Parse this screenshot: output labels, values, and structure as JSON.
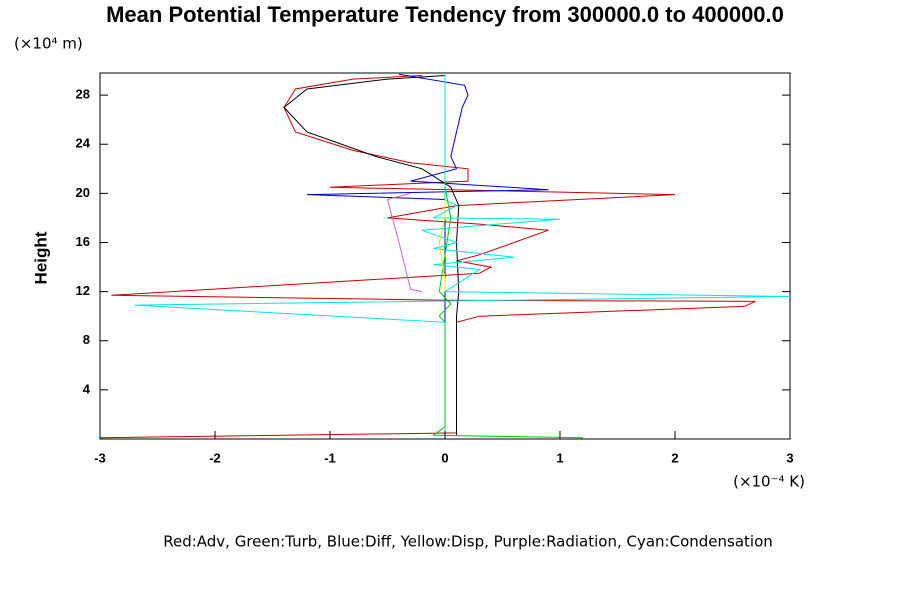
{
  "chart_data": {
    "type": "line",
    "title": "Mean Potential Temperature Tendency from 300000.0 to 400000.0",
    "y_unit_label": "(×10⁴ m)",
    "ylabel": "Height",
    "x_unit_label": "(×10⁻⁴ K)",
    "legend_text": "Red:Adv, Green:Turb, Blue:Diff, Yellow:Disp, Purple:Radiation, Cyan:Condensation",
    "xlim": [
      -3,
      3
    ],
    "xticks": [
      -3,
      -2,
      -1,
      0,
      1,
      2,
      3
    ],
    "ylim": [
      0,
      29.8
    ],
    "yticks": [
      4,
      8,
      12,
      16,
      20,
      24,
      28
    ],
    "series": [
      {
        "color": "#cc0000",
        "x": [
          -3,
          0.1,
          0.1,
          0.3,
          2.6,
          2.7,
          0,
          -2.9,
          0.3,
          0.4,
          0.1,
          0.3,
          0.6,
          0.9,
          0.3,
          -0.5,
          0.1,
          2,
          -1,
          0.2,
          0.2,
          -0.3,
          -0.8,
          -1.3,
          -1.4,
          -1.3,
          -0.8,
          -0.2
        ],
        "y": [
          0.1,
          0.5,
          9.5,
          10,
          10.8,
          11.2,
          11.3,
          11.7,
          13.5,
          14,
          14.5,
          15,
          16,
          17,
          17.5,
          18,
          19,
          19.9,
          20.5,
          21,
          22,
          22.5,
          23.5,
          25,
          27,
          28.5,
          29.3,
          29.6
        ]
      },
      {
        "color": "#000000",
        "x": [
          0.1,
          0.1,
          0.12,
          0.1,
          0.12,
          0.05,
          -0.2,
          -0.6,
          -1.2,
          -1.4,
          -1.2,
          -0.5,
          0
        ],
        "y": [
          0.3,
          10,
          12,
          16,
          19,
          20.5,
          22,
          23,
          25,
          27,
          28.5,
          29.3,
          29.6
        ]
      },
      {
        "color": "#0000cc",
        "x": [
          0,
          0,
          -1.2,
          0.9,
          -0.3,
          0.1,
          0.05,
          0.1,
          0.15,
          0.2,
          0.17,
          -0.4
        ],
        "y": [
          0.3,
          19.5,
          19.9,
          20.3,
          21,
          22,
          23,
          25,
          27,
          28,
          28.8,
          29.7
        ]
      },
      {
        "color": "#00e5e5",
        "x": [
          0,
          0,
          -2.7,
          3,
          0,
          0.3,
          -0.1,
          0.6,
          -0.1,
          0.1,
          -0.2,
          1,
          -0.1,
          0.1,
          0,
          0
        ],
        "y": [
          0,
          9.5,
          10.9,
          11.6,
          12,
          13.8,
          14.2,
          14.8,
          15.5,
          16,
          17,
          17.9,
          18,
          19,
          19.5,
          29.7
        ]
      },
      {
        "color": "#00cc00",
        "x": [
          1.2,
          -0.1,
          0,
          0,
          -0.05,
          0.05,
          -0.05,
          0.05,
          0
        ],
        "y": [
          0.1,
          0.3,
          1,
          9.5,
          10,
          11,
          12,
          18,
          20.5
        ]
      },
      {
        "color": "#e5e500",
        "x": [
          0,
          0,
          -0.05,
          0,
          0
        ],
        "y": [
          12,
          13,
          16,
          18,
          19.5
        ]
      },
      {
        "color": "#cc66cc",
        "x": [
          -0.2,
          -0.3,
          -0.4,
          -0.5,
          -0.3
        ],
        "y": [
          12,
          12.2,
          16,
          19.5,
          20
        ]
      }
    ]
  }
}
